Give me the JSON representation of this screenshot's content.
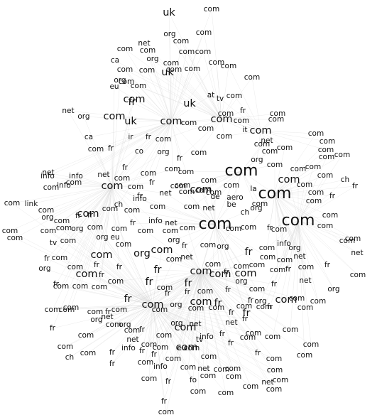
{
  "graph": {
    "type": "network-word-cloud",
    "edge_color": "#d9d9d9",
    "label_color": "#111111",
    "nodes": [
      {
        "label": "com",
        "weight": 3
      },
      {
        "label": "com",
        "weight": 3
      },
      {
        "label": "com",
        "weight": 3
      },
      {
        "label": "com",
        "weight": 3
      },
      {
        "label": "com",
        "weight": 2
      },
      {
        "label": "com",
        "weight": 2
      },
      {
        "label": "com",
        "weight": 2
      },
      {
        "label": "com",
        "weight": 2
      },
      {
        "label": "com",
        "weight": 2
      },
      {
        "label": "com",
        "weight": 2
      },
      {
        "label": "com",
        "weight": 2
      },
      {
        "label": "com",
        "weight": 2
      },
      {
        "label": "com",
        "weight": 2
      },
      {
        "label": "com",
        "weight": 2
      },
      {
        "label": "com",
        "weight": 2
      },
      {
        "label": "com",
        "weight": 2
      },
      {
        "label": "com",
        "weight": 2
      },
      {
        "label": "com",
        "weight": 2
      },
      {
        "label": "com",
        "weight": 2
      },
      {
        "label": "com",
        "weight": 2
      },
      {
        "label": "com",
        "weight": 2
      },
      {
        "label": "com",
        "weight": 2
      },
      {
        "label": "com",
        "weight": 2
      },
      {
        "label": "com",
        "weight": 2
      },
      {
        "label": "org",
        "weight": 2
      },
      {
        "label": "fr",
        "weight": 2
      },
      {
        "label": "fr",
        "weight": 2
      },
      {
        "label": "fr",
        "weight": 2
      },
      {
        "label": "fr",
        "weight": 2
      },
      {
        "label": "fr",
        "weight": 2
      },
      {
        "label": "fr",
        "weight": 2
      },
      {
        "label": "fr",
        "weight": 2
      },
      {
        "label": "fr",
        "weight": 2
      },
      {
        "label": "uk",
        "weight": 2
      },
      {
        "label": "uk",
        "weight": 2
      },
      {
        "label": "uk",
        "weight": 2
      },
      {
        "label": "uk",
        "weight": 2
      },
      {
        "label": "com",
        "weight": 1
      },
      {
        "label": "org",
        "weight": 1
      },
      {
        "label": "com",
        "weight": 1
      },
      {
        "label": "net",
        "weight": 1
      },
      {
        "label": "com",
        "weight": 1
      },
      {
        "label": "com",
        "weight": 1
      },
      {
        "label": "com",
        "weight": 1
      },
      {
        "label": "com",
        "weight": 1
      },
      {
        "label": "com",
        "weight": 1
      },
      {
        "label": "ca",
        "weight": 1
      },
      {
        "label": "org",
        "weight": 1
      },
      {
        "label": "eu",
        "weight": 1
      },
      {
        "label": "org",
        "weight": 1
      },
      {
        "label": "com",
        "weight": 1
      },
      {
        "label": "com",
        "weight": 1
      },
      {
        "label": "com",
        "weight": 1
      },
      {
        "label": "com",
        "weight": 1
      },
      {
        "label": "com",
        "weight": 1
      },
      {
        "label": "com",
        "weight": 1
      },
      {
        "label": "com",
        "weight": 1
      },
      {
        "label": "com",
        "weight": 1
      },
      {
        "label": "at",
        "weight": 1
      },
      {
        "label": "tv",
        "weight": 1
      },
      {
        "label": "com",
        "weight": 1
      },
      {
        "label": "com",
        "weight": 1
      },
      {
        "label": "net",
        "weight": 1
      },
      {
        "label": "org",
        "weight": 1
      },
      {
        "label": "com",
        "weight": 1
      },
      {
        "label": "fr",
        "weight": 1
      },
      {
        "label": "com",
        "weight": 1
      },
      {
        "label": "com",
        "weight": 1
      },
      {
        "label": "com",
        "weight": 1
      },
      {
        "label": "com",
        "weight": 1
      },
      {
        "label": "it",
        "weight": 1
      },
      {
        "label": "com",
        "weight": 1
      },
      {
        "label": "com",
        "weight": 1
      },
      {
        "label": "com",
        "weight": 1
      },
      {
        "label": "ca",
        "weight": 1
      },
      {
        "label": "ir",
        "weight": 1
      },
      {
        "label": "fr",
        "weight": 1
      },
      {
        "label": "com",
        "weight": 1
      },
      {
        "label": "com",
        "weight": 1
      },
      {
        "label": "com",
        "weight": 1
      },
      {
        "label": "net",
        "weight": 1
      },
      {
        "label": "com",
        "weight": 1
      },
      {
        "label": "com",
        "weight": 1
      },
      {
        "label": "com",
        "weight": 1
      },
      {
        "label": "com",
        "weight": 1
      },
      {
        "label": "com",
        "weight": 1
      },
      {
        "label": "com",
        "weight": 1
      },
      {
        "label": "com",
        "weight": 1
      },
      {
        "label": "ch",
        "weight": 1
      },
      {
        "label": "com",
        "weight": 1
      },
      {
        "label": "fr",
        "weight": 1
      },
      {
        "label": "co",
        "weight": 1
      },
      {
        "label": "org",
        "weight": 1
      },
      {
        "label": "fr",
        "weight": 1
      },
      {
        "label": "com",
        "weight": 1
      },
      {
        "label": "fr",
        "weight": 1
      },
      {
        "label": "com",
        "weight": 1
      },
      {
        "label": "com",
        "weight": 1
      },
      {
        "label": "com",
        "weight": 1
      },
      {
        "label": "org",
        "weight": 1
      },
      {
        "label": "com",
        "weight": 1
      },
      {
        "label": "com",
        "weight": 1
      },
      {
        "label": "net",
        "weight": 1
      },
      {
        "label": "net",
        "weight": 1
      },
      {
        "label": "com",
        "weight": 1
      },
      {
        "label": "com",
        "weight": 1
      },
      {
        "label": "fr",
        "weight": 1
      },
      {
        "label": "com",
        "weight": 1
      },
      {
        "label": "com",
        "weight": 1
      },
      {
        "label": "com",
        "weight": 1
      },
      {
        "label": "com",
        "weight": 1
      },
      {
        "label": "fr",
        "weight": 1
      },
      {
        "label": "com",
        "weight": 1
      },
      {
        "label": "info",
        "weight": 1
      },
      {
        "label": "info",
        "weight": 1
      },
      {
        "label": "info",
        "weight": 1
      },
      {
        "label": "net",
        "weight": 1
      },
      {
        "label": "com",
        "weight": 1
      },
      {
        "label": "com",
        "weight": 1
      },
      {
        "label": "com",
        "weight": 1
      },
      {
        "label": "com",
        "weight": 1
      },
      {
        "label": "aero",
        "weight": 1
      },
      {
        "label": "de",
        "weight": 1
      },
      {
        "label": "la",
        "weight": 1
      },
      {
        "label": "com",
        "weight": 1
      },
      {
        "label": "com",
        "weight": 1
      },
      {
        "label": "fr",
        "weight": 1
      },
      {
        "label": "fr",
        "weight": 1
      },
      {
        "label": "com",
        "weight": 1
      },
      {
        "label": "com",
        "weight": 1
      },
      {
        "label": "com",
        "weight": 1
      },
      {
        "label": "com",
        "weight": 1
      },
      {
        "label": "link",
        "weight": 1
      },
      {
        "label": "com",
        "weight": 1
      },
      {
        "label": "org",
        "weight": 1
      },
      {
        "label": "com",
        "weight": 1
      },
      {
        "label": "fr",
        "weight": 1
      },
      {
        "label": "fr",
        "weight": 1
      },
      {
        "label": "com",
        "weight": 1
      },
      {
        "label": "ch",
        "weight": 1
      },
      {
        "label": "com",
        "weight": 1
      },
      {
        "label": "info",
        "weight": 1
      },
      {
        "label": "com",
        "weight": 1
      },
      {
        "label": "com",
        "weight": 1
      },
      {
        "label": "net",
        "weight": 1
      },
      {
        "label": "be",
        "weight": 1
      },
      {
        "label": "ch",
        "weight": 1
      },
      {
        "label": "org",
        "weight": 1
      },
      {
        "label": "com",
        "weight": 1
      },
      {
        "label": "com",
        "weight": 1
      },
      {
        "label": "fr",
        "weight": 1
      },
      {
        "label": "com",
        "weight": 1
      },
      {
        "label": "com",
        "weight": 1
      },
      {
        "label": "com",
        "weight": 1
      },
      {
        "label": "com",
        "weight": 1
      },
      {
        "label": "com",
        "weight": 1
      },
      {
        "label": "com",
        "weight": 1
      },
      {
        "label": "org",
        "weight": 1
      },
      {
        "label": "com",
        "weight": 1
      },
      {
        "label": "com",
        "weight": 1
      },
      {
        "label": "info",
        "weight": 1
      },
      {
        "label": "net",
        "weight": 1
      },
      {
        "label": "com",
        "weight": 1
      },
      {
        "label": "org",
        "weight": 1
      },
      {
        "label": "fr",
        "weight": 1
      },
      {
        "label": "com",
        "weight": 1
      },
      {
        "label": "tv",
        "weight": 1
      },
      {
        "label": "com",
        "weight": 1
      },
      {
        "label": "org",
        "weight": 1
      },
      {
        "label": "eu",
        "weight": 1
      },
      {
        "label": "com",
        "weight": 1
      },
      {
        "label": "fr",
        "weight": 1
      },
      {
        "label": "com",
        "weight": 1
      },
      {
        "label": "com",
        "weight": 1
      },
      {
        "label": "com",
        "weight": 1
      },
      {
        "label": "org",
        "weight": 1
      },
      {
        "label": "com",
        "weight": 1
      },
      {
        "label": "info",
        "weight": 1
      },
      {
        "label": "com",
        "weight": 1
      },
      {
        "label": "net",
        "weight": 1
      },
      {
        "label": "com",
        "weight": 1
      },
      {
        "label": "fr",
        "weight": 1
      },
      {
        "label": "com",
        "weight": 1
      },
      {
        "label": "org",
        "weight": 1
      },
      {
        "label": "com",
        "weight": 1
      },
      {
        "label": "fr",
        "weight": 1
      },
      {
        "label": "fr",
        "weight": 1
      },
      {
        "label": "com",
        "weight": 1
      },
      {
        "label": "net",
        "weight": 1
      },
      {
        "label": "com",
        "weight": 1
      },
      {
        "label": "fr",
        "weight": 1
      },
      {
        "label": "com",
        "weight": 1
      },
      {
        "label": "com",
        "weight": 1
      },
      {
        "label": "com",
        "weight": 1
      },
      {
        "label": "com",
        "weight": 1
      },
      {
        "label": "net",
        "weight": 1
      },
      {
        "label": "org",
        "weight": 1
      },
      {
        "label": "com",
        "weight": 1
      },
      {
        "label": "fr",
        "weight": 1
      },
      {
        "label": "com",
        "weight": 1
      },
      {
        "label": "fr",
        "weight": 1
      },
      {
        "label": "net",
        "weight": 1
      },
      {
        "label": "org",
        "weight": 1
      },
      {
        "label": "com",
        "weight": 1
      },
      {
        "label": "fr",
        "weight": 1
      },
      {
        "label": "com",
        "weight": 1
      },
      {
        "label": "com",
        "weight": 1
      },
      {
        "label": "com",
        "weight": 1
      },
      {
        "label": "com",
        "weight": 1
      },
      {
        "label": "fr",
        "weight": 1
      },
      {
        "label": "com",
        "weight": 1
      },
      {
        "label": "fr",
        "weight": 1
      },
      {
        "label": "fr",
        "weight": 1
      },
      {
        "label": "com",
        "weight": 1
      },
      {
        "label": "fr",
        "weight": 1
      },
      {
        "label": "org",
        "weight": 1
      },
      {
        "label": "com",
        "weight": 1
      },
      {
        "label": "fr",
        "weight": 1
      },
      {
        "label": "fr",
        "weight": 1
      },
      {
        "label": "org",
        "weight": 1
      },
      {
        "label": "fr",
        "weight": 1
      },
      {
        "label": "com",
        "weight": 1
      },
      {
        "label": "com",
        "weight": 1
      },
      {
        "label": "com",
        "weight": 1
      },
      {
        "label": "com",
        "weight": 1
      },
      {
        "label": "com",
        "weight": 1
      },
      {
        "label": "com",
        "weight": 1
      },
      {
        "label": "fr",
        "weight": 1
      },
      {
        "label": "com",
        "weight": 1
      },
      {
        "label": "com",
        "weight": 1
      },
      {
        "label": "com",
        "weight": 1
      },
      {
        "label": "org",
        "weight": 1
      },
      {
        "label": "com",
        "weight": 1
      },
      {
        "label": "com",
        "weight": 1
      },
      {
        "label": "fr",
        "weight": 1
      },
      {
        "label": "com",
        "weight": 1
      },
      {
        "label": "com",
        "weight": 1
      },
      {
        "label": "org",
        "weight": 1
      },
      {
        "label": "net",
        "weight": 1
      },
      {
        "label": "org",
        "weight": 1
      },
      {
        "label": "com",
        "weight": 1
      },
      {
        "label": "fr",
        "weight": 1
      },
      {
        "label": "com",
        "weight": 1
      },
      {
        "label": "fr",
        "weight": 1
      },
      {
        "label": "com",
        "weight": 1
      },
      {
        "label": "net",
        "weight": 1
      },
      {
        "label": "com",
        "weight": 1
      },
      {
        "label": "com",
        "weight": 1
      },
      {
        "label": "org",
        "weight": 1
      },
      {
        "label": "net",
        "weight": 1
      },
      {
        "label": "info",
        "weight": 1
      },
      {
        "label": "fr",
        "weight": 1
      },
      {
        "label": "net",
        "weight": 1
      },
      {
        "label": "fr",
        "weight": 1
      },
      {
        "label": "com",
        "weight": 1
      },
      {
        "label": "com",
        "weight": 1
      },
      {
        "label": "com",
        "weight": 1
      },
      {
        "label": "com",
        "weight": 1
      },
      {
        "label": "fr",
        "weight": 1
      },
      {
        "label": "info",
        "weight": 1
      },
      {
        "label": "fr",
        "weight": 1
      },
      {
        "label": "fr",
        "weight": 1
      },
      {
        "label": "com",
        "weight": 1
      },
      {
        "label": "eu",
        "weight": 1
      },
      {
        "label": "com",
        "weight": 1
      },
      {
        "label": "tv",
        "weight": 1
      },
      {
        "label": "com",
        "weight": 1
      },
      {
        "label": "fr",
        "weight": 1
      },
      {
        "label": "com",
        "weight": 1
      },
      {
        "label": "fr",
        "weight": 1
      },
      {
        "label": "com",
        "weight": 1
      },
      {
        "label": "com",
        "weight": 1
      },
      {
        "label": "com",
        "weight": 1
      },
      {
        "label": "com",
        "weight": 1
      },
      {
        "label": "ch",
        "weight": 1
      },
      {
        "label": "fr",
        "weight": 1
      },
      {
        "label": "com",
        "weight": 1
      },
      {
        "label": "info",
        "weight": 1
      },
      {
        "label": "com",
        "weight": 1
      },
      {
        "label": "com",
        "weight": 1
      },
      {
        "label": "net",
        "weight": 1
      },
      {
        "label": "com",
        "weight": 1
      },
      {
        "label": "com",
        "weight": 1
      },
      {
        "label": "com",
        "weight": 1
      },
      {
        "label": "com",
        "weight": 1
      },
      {
        "label": "com",
        "weight": 1
      },
      {
        "label": "fo",
        "weight": 1
      },
      {
        "label": "com",
        "weight": 1
      },
      {
        "label": "com",
        "weight": 1
      },
      {
        "label": "com",
        "weight": 1
      },
      {
        "label": "net",
        "weight": 1
      },
      {
        "label": "com",
        "weight": 1
      },
      {
        "label": "fr",
        "weight": 1
      },
      {
        "label": "com",
        "weight": 1
      },
      {
        "label": "fr",
        "weight": 1
      },
      {
        "label": "com",
        "weight": 1
      },
      {
        "label": "com",
        "weight": 1
      },
      {
        "label": "fr",
        "weight": 1
      },
      {
        "label": "com",
        "weight": 1
      },
      {
        "label": "fr",
        "weight": 1
      },
      {
        "label": "com",
        "weight": 1
      },
      {
        "label": "com",
        "weight": 1
      },
      {
        "label": "org",
        "weight": 1
      },
      {
        "label": "com",
        "weight": 1
      },
      {
        "label": "com",
        "weight": 1
      },
      {
        "label": "com",
        "weight": 1
      },
      {
        "label": "com",
        "weight": 1
      },
      {
        "label": "org",
        "weight": 1
      },
      {
        "label": "com",
        "weight": 1
      },
      {
        "label": "com",
        "weight": 1
      },
      {
        "label": "net",
        "weight": 1
      },
      {
        "label": "com",
        "weight": 1
      }
    ]
  }
}
